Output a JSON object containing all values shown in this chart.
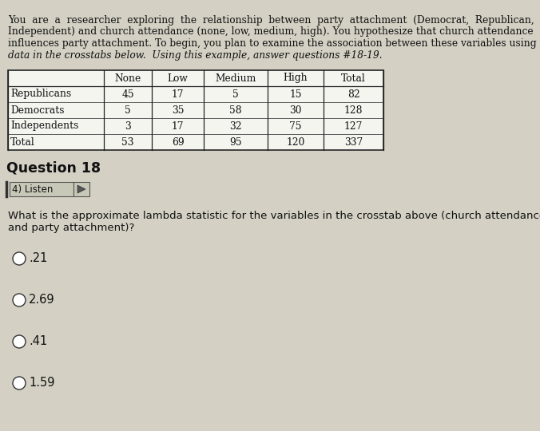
{
  "bg_color": "#d4d0c4",
  "intro_text_lines": [
    "You  are  a  researcher  exploring  the  relationship  between  party  attachment  (Democrat,  Republican,",
    "Independent) and church attendance (none, low, medium, high). You hypothesize that church attendance",
    "influences party attachment. To begin, you plan to examine the association between these variables using the",
    "data in the crosstabs below.  Using this example, answer questions #18-19."
  ],
  "table": {
    "col_headers": [
      "",
      "None",
      "Low",
      "Medium",
      "High",
      "Total"
    ],
    "rows": [
      [
        "Republicans",
        "45",
        "17",
        "5",
        "15",
        "82"
      ],
      [
        "Democrats",
        "5",
        "35",
        "58",
        "30",
        "128"
      ],
      [
        "Independents",
        "3",
        "17",
        "32",
        "75",
        "127"
      ],
      [
        "Total",
        "53",
        "69",
        "95",
        "120",
        "337"
      ]
    ]
  },
  "question_label": "Question 18",
  "listen_text": "4) Listen",
  "question_text_lines": [
    "What is the approximate lambda statistic for the variables in the crosstab above (church attendance",
    "and party attachment)?"
  ],
  "options": [
    ".21",
    "2.69",
    ".41",
    "1.59"
  ],
  "text_color": "#111111",
  "table_bg": "#f5f5f0",
  "font_size_intro": 8.8,
  "font_size_table_header": 8.8,
  "font_size_table_data": 8.8,
  "font_size_question_label": 12.5,
  "font_size_question_text": 9.5,
  "font_size_options": 10.5,
  "font_size_listen": 8.5
}
